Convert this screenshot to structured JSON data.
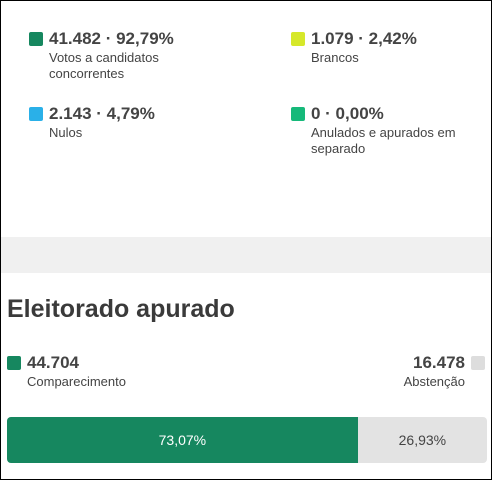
{
  "results": [
    {
      "value": "41.482 · 92,79%",
      "label": "Votos a candidatos concorrentes",
      "color": "#16875f"
    },
    {
      "value": "1.079 · 2,42%",
      "label": "Brancos",
      "color": "#d6e82a"
    },
    {
      "value": "2.143 · 4,79%",
      "label": "Nulos",
      "color": "#2ab0e8"
    },
    {
      "value": "0 · 0,00%",
      "label": "Anulados e apurados em separado",
      "color": "#16b97a"
    }
  ],
  "electorate": {
    "title": "Eleitorado apurado",
    "turnout": {
      "value": "44.704",
      "label": "Comparecimento",
      "color": "#16875f"
    },
    "abstention": {
      "value": "16.478",
      "label": "Abstenção",
      "color": "#dddddd"
    },
    "bar": {
      "turnout_percent_label": "73,07%",
      "abstention_percent_label": "26,93%",
      "turnout_fraction": 0.7307
    }
  }
}
